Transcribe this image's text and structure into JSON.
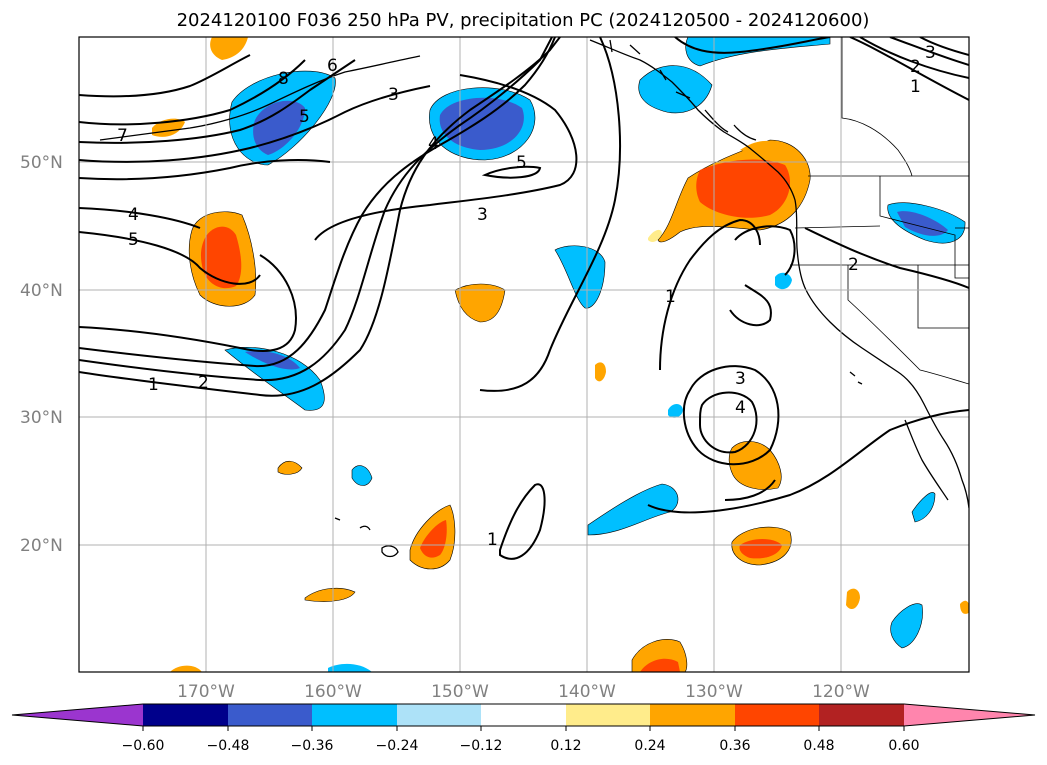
{
  "title": "2024120100 F036 250 hPa PV, precipitation PC (2024120500 - 2024120600)",
  "lat_labels": [
    "50°N",
    "40°N",
    "30°N",
    "20°N"
  ],
  "lon_labels": [
    "170°W",
    "160°W",
    "150°W",
    "140°W",
    "130°W",
    "120°W"
  ],
  "colorbar": {
    "ticks": [
      "−0.60",
      "−0.48",
      "−0.36",
      "−0.24",
      "−0.12",
      "0.12",
      "0.24",
      "0.36",
      "0.48",
      "0.60"
    ],
    "colors": {
      "under": "#9b35cf",
      "b1": "#00008b",
      "b2": "#3a5bcc",
      "b3": "#00bfff",
      "b4": "#ade2f8",
      "b5": "#ffffff",
      "b6": "#ffec8b",
      "b7": "#ffa500",
      "b8": "#ff4500",
      "b9": "#b22222",
      "over": "#ff85ad"
    }
  },
  "contour_labels": [
    "8",
    "6",
    "5",
    "7",
    "4",
    "5",
    "1",
    "2",
    "3",
    "4",
    "3",
    "5",
    "3",
    "2",
    "1",
    "2",
    "1",
    "3",
    "4",
    "1"
  ]
}
